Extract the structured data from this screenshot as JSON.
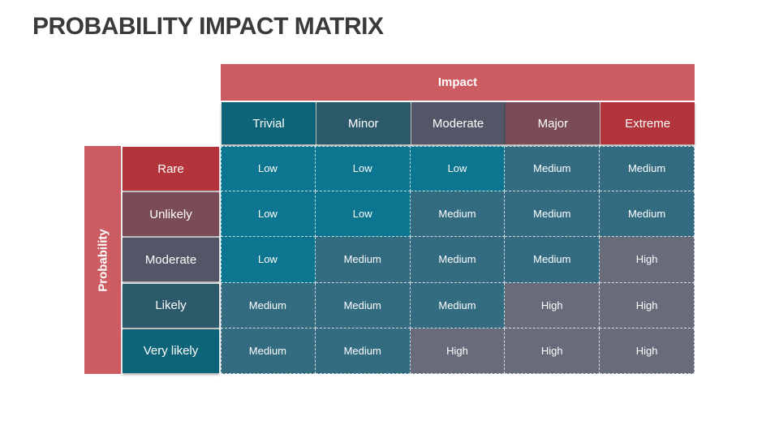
{
  "title": "PROBABILITY IMPACT MATRIX",
  "impact_label": "Impact",
  "probability_label": "Probability",
  "impact_levels": [
    {
      "label": "Trivial",
      "color": "#0d6478"
    },
    {
      "label": "Minor",
      "color": "#2d5a6b"
    },
    {
      "label": "Moderate",
      "color": "#545566"
    },
    {
      "label": "Major",
      "color": "#7a4c57"
    },
    {
      "label": "Extreme",
      "color": "#b3343b"
    }
  ],
  "probability_levels": [
    {
      "label": "Rare",
      "color": "#b3343b"
    },
    {
      "label": "Unlikely",
      "color": "#7a4c57"
    },
    {
      "label": "Moderate",
      "color": "#545566"
    },
    {
      "label": "Likely",
      "color": "#2d5a6b"
    },
    {
      "label": "Very likely",
      "color": "#0d6478"
    }
  ],
  "rating_colors": {
    "Low": "#0c7590",
    "Medium": "#336c80",
    "High": "#676b7a"
  },
  "matrix": [
    [
      "Low",
      "Low",
      "Low",
      "Medium",
      "Medium"
    ],
    [
      "Low",
      "Low",
      "Medium",
      "Medium",
      "Medium"
    ],
    [
      "Low",
      "Medium",
      "Medium",
      "Medium",
      "High"
    ],
    [
      "Medium",
      "Medium",
      "Medium",
      "High",
      "High"
    ],
    [
      "Medium",
      "Medium",
      "High",
      "High",
      "High"
    ]
  ]
}
